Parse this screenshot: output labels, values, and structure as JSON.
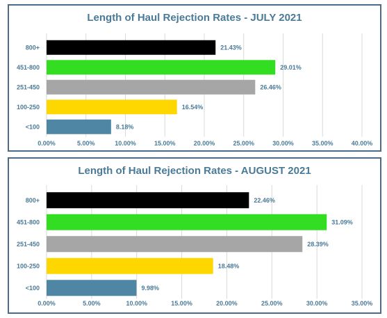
{
  "style": {
    "title_color": "#4a7a97",
    "tick_color": "#4a7a97",
    "label_color": "#4a7a97",
    "grid_color": "#d9d9d9",
    "border_color": "#4a6a88"
  },
  "chart_data": [
    {
      "type": "bar",
      "orientation": "horizontal",
      "title": "Length of Haul Rejection Rates - JULY 2021",
      "categories": [
        "800+",
        "451-800",
        "251-450",
        "100-250",
        "<100"
      ],
      "values": [
        21.43,
        29.01,
        26.46,
        16.54,
        8.18
      ],
      "value_labels": [
        "21.43%",
        "29.01%",
        "26.46%",
        "16.54%",
        "8.18%"
      ],
      "colors": [
        "#000000",
        "#33dd22",
        "#a6a6a6",
        "#ffd700",
        "#4e86a3"
      ],
      "xlim": [
        0,
        40
      ],
      "xticks": [
        0,
        5,
        10,
        15,
        20,
        25,
        30,
        35,
        40
      ],
      "xtick_labels": [
        "0.00%",
        "5.00%",
        "10.00%",
        "15.00%",
        "20.00%",
        "25.00%",
        "30.00%",
        "35.00%",
        "40.00%"
      ],
      "grid": "vertical",
      "legend": "none"
    },
    {
      "type": "bar",
      "orientation": "horizontal",
      "title": "Length of Haul Rejection Rates - AUGUST 2021",
      "categories": [
        "800+",
        "451-800",
        "251-450",
        "100-250",
        "<100"
      ],
      "values": [
        22.46,
        31.09,
        28.39,
        18.48,
        9.98
      ],
      "value_labels": [
        "22.46%",
        "31.09%",
        "28.39%",
        "18.48%",
        "9.98%"
      ],
      "colors": [
        "#000000",
        "#33dd22",
        "#a6a6a6",
        "#ffd700",
        "#4e86a3"
      ],
      "xlim": [
        0,
        35
      ],
      "xticks": [
        0,
        5,
        10,
        15,
        20,
        25,
        30,
        35
      ],
      "xtick_labels": [
        "0.00%",
        "5.00%",
        "10.00%",
        "15.00%",
        "20.00%",
        "25.00%",
        "30.00%",
        "35.00%"
      ],
      "grid": "vertical",
      "legend": "none"
    }
  ]
}
